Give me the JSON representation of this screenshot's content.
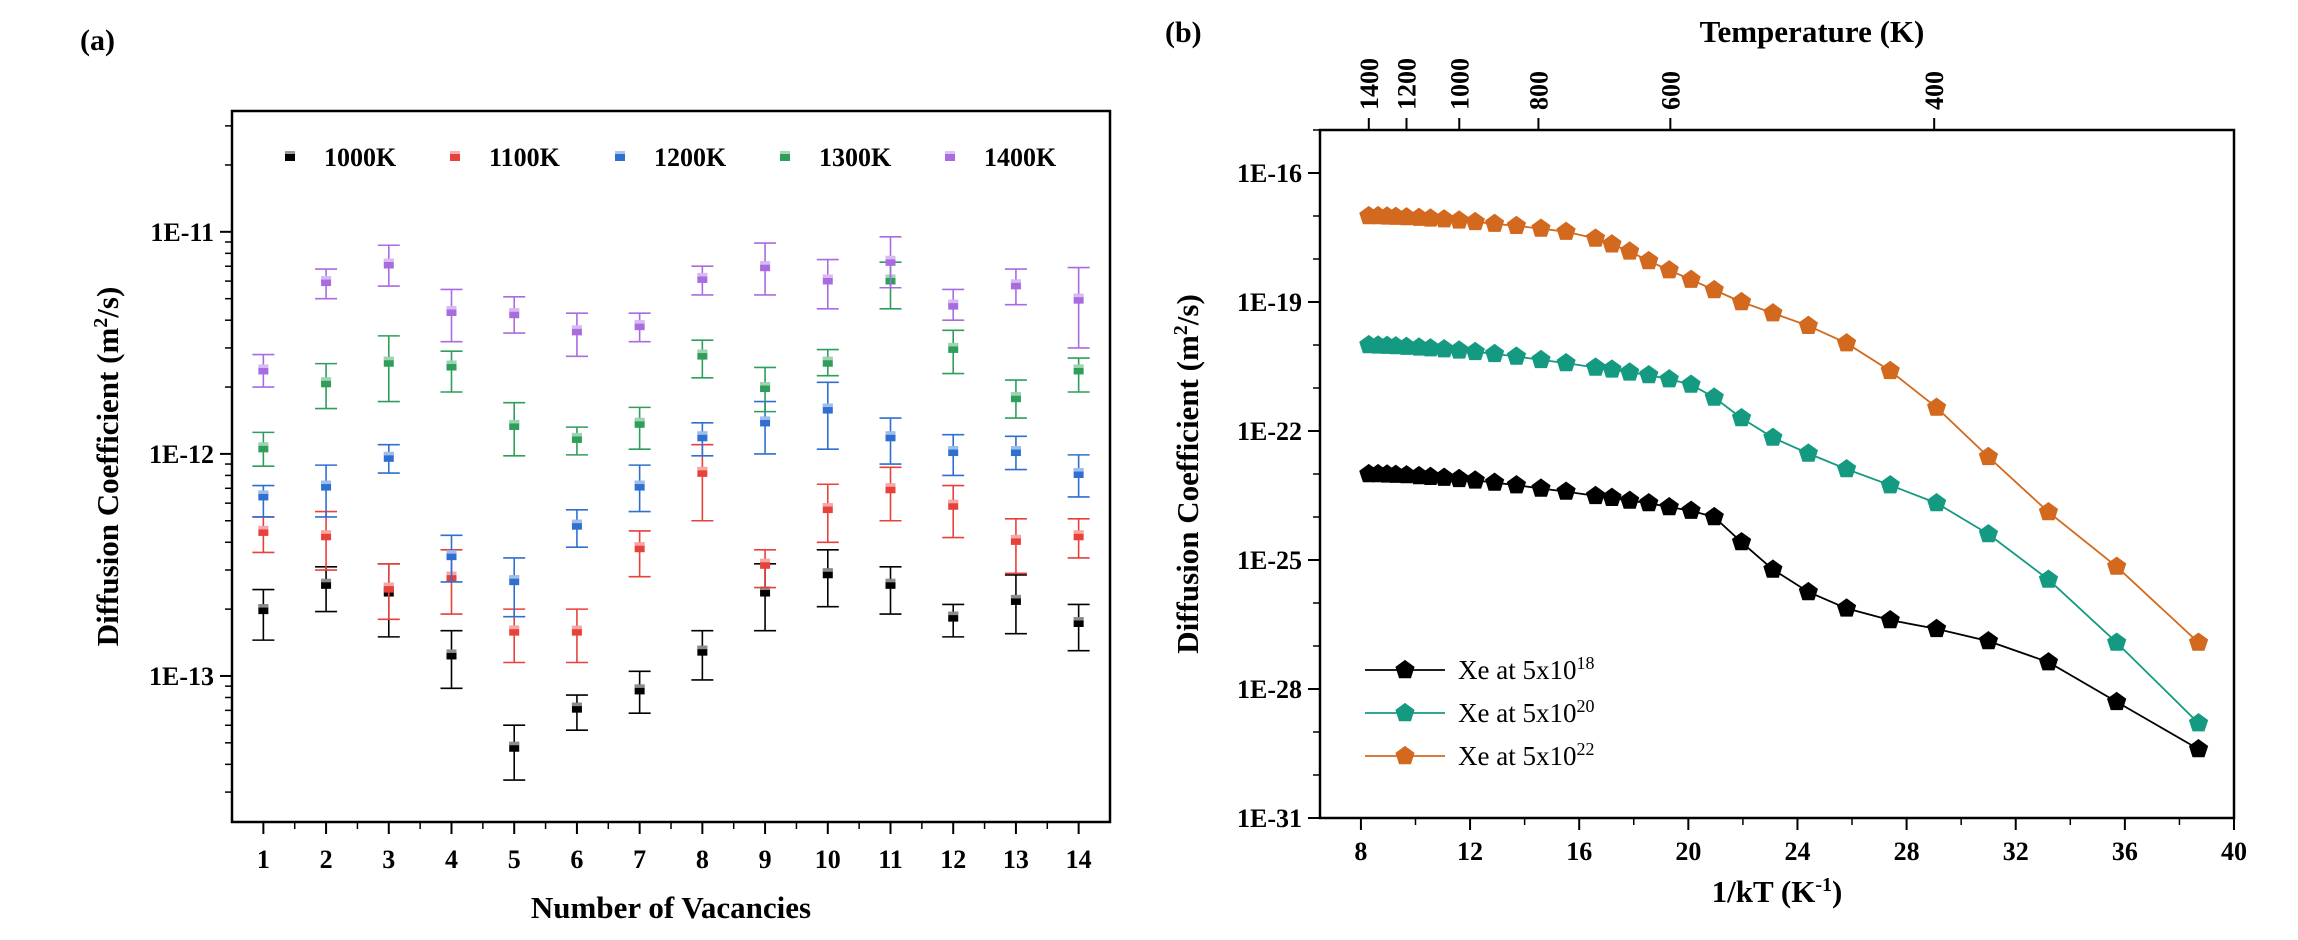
{
  "chart_data": [
    {
      "panel": "(a)",
      "type": "scatter",
      "xlabel": "Number of Vacancies",
      "ylabel": "Diffusion Coefficient (m",
      "ylabel_sup": "2",
      "ylabel_end": "/s)",
      "xlim": [
        0.5,
        14.5
      ],
      "x_ticks": [
        1,
        2,
        3,
        4,
        5,
        6,
        7,
        8,
        9,
        10,
        11,
        12,
        13,
        14
      ],
      "ylim": [
        2.2e-14,
        3.5e-11
      ],
      "y_scale": "log",
      "y_ticks": [
        {
          "value": 1e-13,
          "label": "1E-13"
        },
        {
          "value": 1e-12,
          "label": "1E-12"
        },
        {
          "value": 1e-11,
          "label": "1E-11"
        }
      ],
      "grid": false,
      "legend_placement": "top",
      "x": [
        1,
        2,
        3,
        4,
        5,
        6,
        7,
        8,
        9,
        10,
        11,
        12,
        13,
        14
      ],
      "series": [
        {
          "name": "1000K",
          "color": "#000000",
          "values": [
            2e-13,
            2.6e-13,
            2.4e-13,
            1.25e-13,
            4.8e-14,
            7.2e-14,
            8.7e-14,
            1.3e-13,
            2.4e-13,
            2.9e-13,
            2.6e-13,
            1.85e-13,
            2.2e-13,
            1.75e-13
          ],
          "err_low": [
            1.45e-13,
            1.95e-13,
            1.5e-13,
            8.8e-14,
            3.4e-14,
            5.7e-14,
            6.8e-14,
            9.6e-14,
            1.6e-13,
            2.05e-13,
            1.9e-13,
            1.5e-13,
            1.55e-13,
            1.3e-13
          ],
          "err_high": [
            2.45e-13,
            3.1e-13,
            3.2e-13,
            1.6e-13,
            6e-14,
            8.2e-14,
            1.05e-13,
            1.6e-13,
            3.2e-13,
            3.7e-13,
            3.1e-13,
            2.1e-13,
            2.85e-13,
            2.1e-13
          ]
        },
        {
          "name": "1100K",
          "color": "#e8413c",
          "values": [
            4.5e-13,
            4.3e-13,
            2.5e-13,
            2.8e-13,
            1.6e-13,
            1.6e-13,
            3.8e-13,
            8.3e-13,
            3.2e-13,
            5.7e-13,
            7e-13,
            5.9e-13,
            4.1e-13,
            4.3e-13
          ],
          "err_low": [
            3.6e-13,
            3e-13,
            1.8e-13,
            1.9e-13,
            1.15e-13,
            1.15e-13,
            2.8e-13,
            5e-13,
            2.5e-13,
            4e-13,
            5e-13,
            4.2e-13,
            2.9e-13,
            3.4e-13
          ],
          "err_high": [
            5.2e-13,
            5.5e-13,
            3.2e-13,
            3.7e-13,
            2e-13,
            2e-13,
            4.5e-13,
            1.1e-12,
            3.7e-13,
            7.3e-13,
            8.7e-13,
            7.2e-13,
            5.1e-13,
            5.1e-13
          ]
        },
        {
          "name": "1200K",
          "color": "#2e6fd0",
          "values": [
            6.5e-13,
            7.2e-13,
            9.7e-13,
            3.5e-13,
            2.7e-13,
            4.8e-13,
            7.2e-13,
            1.2e-12,
            1.4e-12,
            1.6e-12,
            1.2e-12,
            1.03e-12,
            1.03e-12,
            8.2e-13
          ],
          "err_low": [
            5.2e-13,
            5.2e-13,
            8.2e-13,
            2.65e-13,
            1.85e-13,
            3.8e-13,
            5.5e-13,
            9.8e-13,
            1e-12,
            1.05e-12,
            9e-13,
            8e-13,
            8.5e-13,
            6.4e-13
          ],
          "err_high": [
            7.2e-13,
            8.9e-13,
            1.1e-12,
            4.3e-13,
            3.4e-13,
            5.6e-13,
            8.9e-13,
            1.38e-12,
            1.72e-12,
            2.1e-12,
            1.45e-12,
            1.22e-12,
            1.2e-12,
            9.9e-13
          ]
        },
        {
          "name": "1300K",
          "color": "#2e9e5a",
          "values": [
            1.07e-12,
            2.1e-12,
            2.6e-12,
            2.5e-12,
            1.35e-12,
            1.18e-12,
            1.38e-12,
            2.8e-12,
            2e-12,
            2.6e-12,
            6.1e-12,
            3e-12,
            1.8e-12,
            2.4e-12
          ],
          "err_low": [
            8.8e-13,
            1.6e-12,
            1.72e-12,
            1.9e-12,
            9.8e-13,
            9.9e-13,
            1.05e-12,
            2.2e-12,
            1.55e-12,
            2.25e-12,
            4.5e-12,
            2.3e-12,
            1.45e-12,
            1.9e-12
          ],
          "err_high": [
            1.25e-12,
            2.55e-12,
            3.4e-12,
            2.9e-12,
            1.7e-12,
            1.32e-12,
            1.62e-12,
            3.25e-12,
            2.45e-12,
            2.95e-12,
            7.3e-12,
            3.6e-12,
            2.15e-12,
            2.7e-12
          ]
        },
        {
          "name": "1400K",
          "color": "#a86ce0",
          "values": [
            2.4e-12,
            6e-12,
            7.2e-12,
            4.4e-12,
            4.3e-12,
            3.6e-12,
            3.8e-12,
            6.2e-12,
            7e-12,
            6.1e-12,
            7.4e-12,
            4.7e-12,
            5.8e-12,
            5e-12
          ],
          "err_low": [
            2e-12,
            5e-12,
            5.7e-12,
            3.2e-12,
            3.5e-12,
            2.75e-12,
            3.2e-12,
            5.2e-12,
            5.2e-12,
            4.5e-12,
            5.6e-12,
            4e-12,
            4.7e-12,
            3e-12
          ],
          "err_high": [
            2.8e-12,
            6.8e-12,
            8.7e-12,
            5.5e-12,
            5.1e-12,
            4.3e-12,
            4.3e-12,
            7e-12,
            8.9e-12,
            7.5e-12,
            9.5e-12,
            5.5e-12,
            6.8e-12,
            6.9e-12
          ]
        }
      ]
    },
    {
      "panel": "(b)",
      "type": "line",
      "xlabel": "1/kT (K",
      "xlabel_sup": "-1",
      "xlabel_end": ")",
      "ylabel": "Diffusion Coefficient (m",
      "ylabel_sup": "2",
      "ylabel_end": "/s)",
      "top_xlabel": "Temperature (K)",
      "top_x_ticks": [
        {
          "value": 1400,
          "label": "1400"
        },
        {
          "value": 1200,
          "label": "1200"
        },
        {
          "value": 1000,
          "label": "1000"
        },
        {
          "value": 800,
          "label": "800"
        },
        {
          "value": 600,
          "label": "600"
        },
        {
          "value": 400,
          "label": "400"
        }
      ],
      "xlim": [
        6.5,
        40
      ],
      "x_ticks": [
        8,
        12,
        16,
        20,
        24,
        28,
        32,
        36,
        40
      ],
      "ylim": [
        1e-31,
        1e-15
      ],
      "y_scale": "log",
      "y_ticks": [
        {
          "value": 1e-31,
          "label": "1E-31"
        },
        {
          "value": 1e-28,
          "label": "1E-28"
        },
        {
          "value": 1e-25,
          "label": "1E-25"
        },
        {
          "value": 1e-22,
          "label": "1E-22"
        },
        {
          "value": 1e-19,
          "label": "1E-19"
        },
        {
          "value": 1e-16,
          "label": "1E-16"
        }
      ],
      "grid": false,
      "legend_placement": "bottom-left",
      "x": [
        8.29,
        8.63,
        8.96,
        9.28,
        9.67,
        10.13,
        10.55,
        11.05,
        11.6,
        12.19,
        12.9,
        13.7,
        14.6,
        15.52,
        16.6,
        17.2,
        17.85,
        18.55,
        19.3,
        20.1,
        20.95,
        21.95,
        23.1,
        24.4,
        25.8,
        27.4,
        29.1,
        31.0,
        33.2,
        35.7,
        38.7
      ],
      "series": [
        {
          "name": "Xe at 5x10",
          "name_sup": "18",
          "color": "#000000",
          "values": [
            1e-23,
            1e-23,
            9.8e-24,
            9.6e-24,
            9.4e-24,
            9e-24,
            8.6e-24,
            8.2e-24,
            7.7e-24,
            7.1e-24,
            6.3e-24,
            5.5e-24,
            4.6e-24,
            3.9e-24,
            3.1e-24,
            2.8e-24,
            2.4e-24,
            2.1e-24,
            1.7e-24,
            1.4e-24,
            1e-24,
            2.6e-25,
            6e-26,
            1.8e-26,
            7.5e-27,
            4e-27,
            2.5e-27,
            1.3e-27,
            4.2e-28,
            5e-29,
            4e-30
          ]
        },
        {
          "name": "Xe at 5x10",
          "name_sup": "20",
          "color": "#159a82",
          "values": [
            1e-20,
            9.8e-21,
            9.6e-21,
            9.4e-21,
            9.1e-21,
            8.8e-21,
            8.4e-21,
            8e-21,
            7.5e-21,
            6.9e-21,
            6.2e-21,
            5.4e-21,
            4.5e-21,
            3.8e-21,
            3e-21,
            2.7e-21,
            2.3e-21,
            2e-21,
            1.6e-21,
            1.2e-21,
            6e-22,
            2e-22,
            7e-23,
            3e-23,
            1.3e-23,
            5.5e-24,
            2.1e-24,
            4e-25,
            3.5e-26,
            1.2e-27,
            1.6e-29
          ]
        },
        {
          "name": "Xe at 5x10",
          "name_sup": "22",
          "color": "#d2691e",
          "values": [
            1e-17,
            1e-17,
            9.8e-18,
            9.6e-18,
            9.4e-18,
            9.1e-18,
            8.8e-18,
            8.4e-18,
            7.9e-18,
            7.3e-18,
            6.6e-18,
            5.9e-18,
            5.1e-18,
            4.3e-18,
            3e-18,
            2.2e-18,
            1.5e-18,
            9e-19,
            5.5e-19,
            3.3e-19,
            1.9e-19,
            1e-19,
            5.5e-20,
            2.8e-20,
            1.1e-20,
            2.5e-21,
            3.5e-22,
            2.5e-23,
            1.3e-24,
            7e-26,
            1.2e-27
          ]
        }
      ]
    }
  ]
}
